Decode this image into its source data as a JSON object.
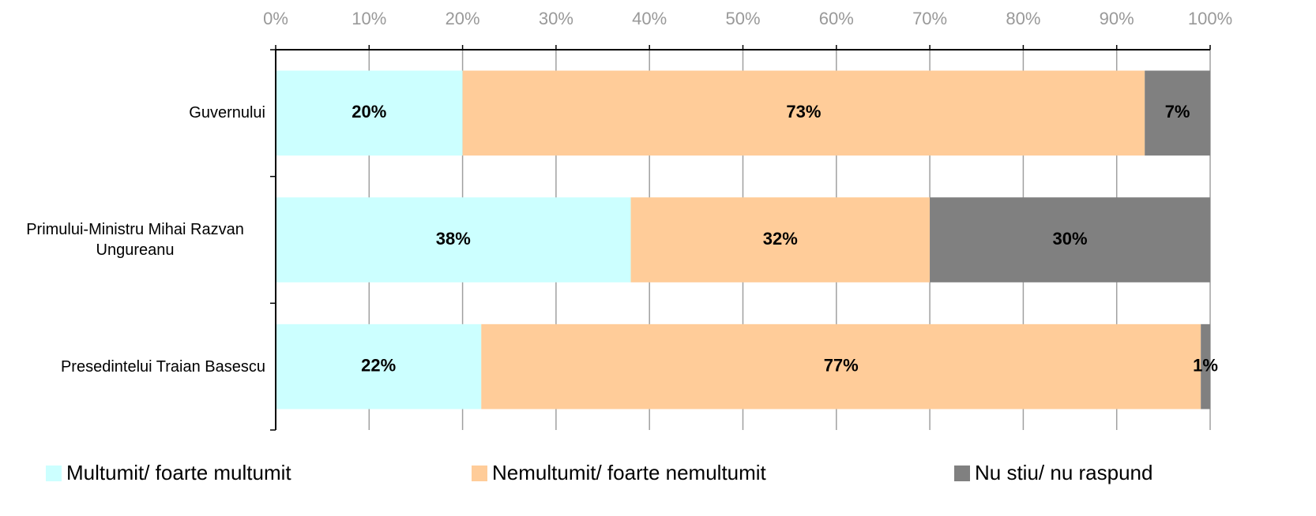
{
  "chart_data": {
    "type": "stacked_bar_horizontal",
    "categories": [
      "Guvernului",
      "Primului-Ministru Mihai Razvan Ungureanu",
      "Presedintelui Traian Basescu"
    ],
    "series": [
      {
        "name": "Multumit/ foarte multumit",
        "color": "#ccffff",
        "values": [
          20,
          38,
          22
        ],
        "value_labels": [
          "20%",
          "38%",
          "22%"
        ]
      },
      {
        "name": "Nemultumit/ foarte nemultumit",
        "color": "#ffcc99",
        "values": [
          73,
          32,
          77
        ],
        "value_labels": [
          "73%",
          "32%",
          "77%"
        ]
      },
      {
        "name": "Nu stiu/ nu raspund",
        "color": "#808080",
        "values": [
          7,
          30,
          1
        ],
        "value_labels": [
          "7%",
          "30%",
          "1%"
        ]
      }
    ],
    "xlim": [
      0,
      100
    ],
    "xticks": [
      {
        "value": 0,
        "label": "0%"
      },
      {
        "value": 10,
        "label": "10%"
      },
      {
        "value": 20,
        "label": "20%"
      },
      {
        "value": 30,
        "label": "30%"
      },
      {
        "value": 40,
        "label": "40%"
      },
      {
        "value": 50,
        "label": "50%"
      },
      {
        "value": 60,
        "label": "60%"
      },
      {
        "value": 70,
        "label": "70%"
      },
      {
        "value": 80,
        "label": "80%"
      },
      {
        "value": 90,
        "label": "90%"
      },
      {
        "value": 100,
        "label": "100%"
      }
    ],
    "grid": true,
    "legend": "bottom"
  }
}
